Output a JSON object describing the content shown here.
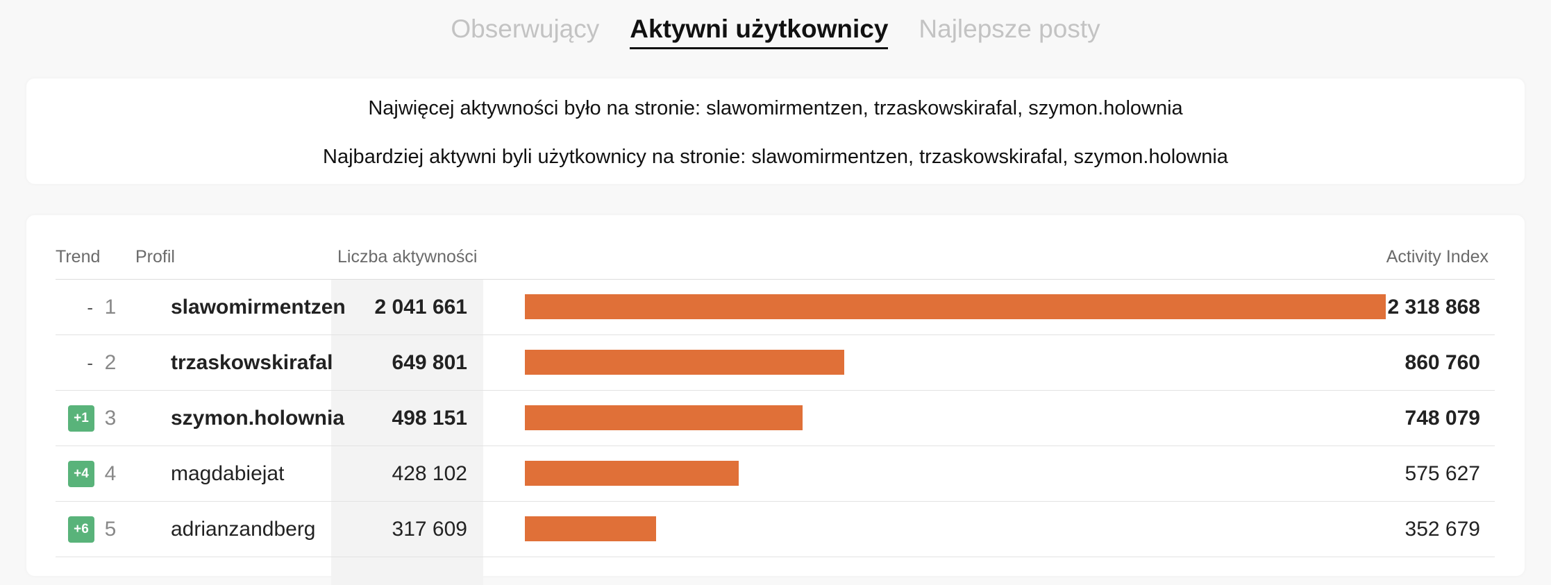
{
  "tabs": [
    {
      "label": "Obserwujący",
      "active": false
    },
    {
      "label": "Aktywni użytkownicy",
      "active": true
    },
    {
      "label": "Najlepsze posty",
      "active": false
    }
  ],
  "summary": {
    "line1": "Najwięcej aktywności było na stronie: slawomirmentzen, trzaskowskirafal, szymon.holownia",
    "line2": "Najbardziej aktywni byli użytkownicy na stronie: slawomirmentzen, trzaskowskirafal, szymon.holownia"
  },
  "table": {
    "headers": {
      "trend": "Trend",
      "profile": "Profil",
      "count": "Liczba aktywności",
      "index": "Activity Index"
    },
    "bar_color": "#e07038",
    "badge_color": "#59b37a",
    "max_index": 2318868,
    "rows": [
      {
        "trend": "-",
        "rank": "1",
        "profile": "slawomirmentzen",
        "count": "2 041 661",
        "index": "2 318 868",
        "index_value": 2318868,
        "bold": true
      },
      {
        "trend": "-",
        "rank": "2",
        "profile": "trzaskowskirafal",
        "count": "649 801",
        "index": "860 760",
        "index_value": 860760,
        "bold": true
      },
      {
        "trend": "+1",
        "rank": "3",
        "profile": "szymon.holownia",
        "count": "498 151",
        "index": "748 079",
        "index_value": 748079,
        "bold": true
      },
      {
        "trend": "+4",
        "rank": "4",
        "profile": "magdabiejat",
        "count": "428 102",
        "index": "575 627",
        "index_value": 575627,
        "bold": false
      },
      {
        "trend": "+6",
        "rank": "5",
        "profile": "adrianzandberg",
        "count": "317 609",
        "index": "352 679",
        "index_value": 352679,
        "bold": false
      }
    ]
  }
}
